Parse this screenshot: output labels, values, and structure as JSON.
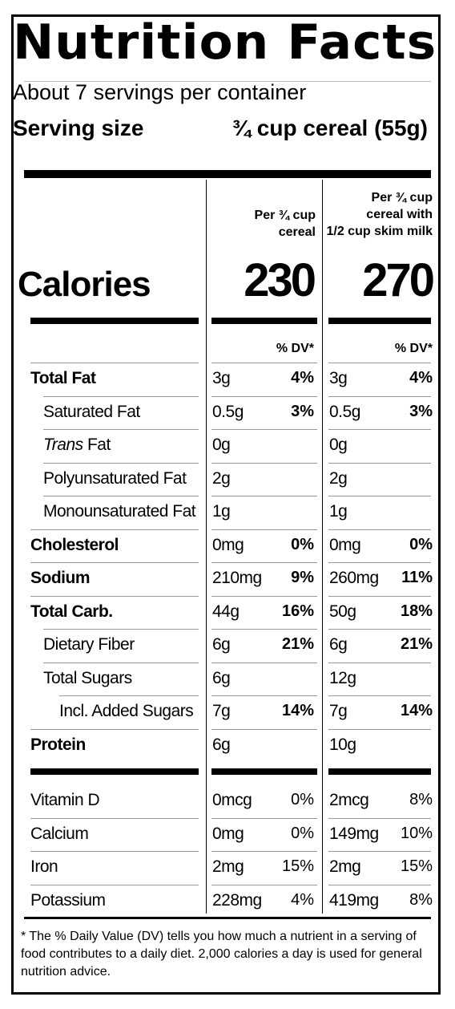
{
  "title": "Nutrition Facts",
  "servings_per_container": "About 7 servings per container",
  "serving_size_label": "Serving size",
  "serving_size_value": "¾ cup cereal (55g)",
  "columns": [
    {
      "heading_line1": "Per ¾ cup",
      "heading_line2": "cereal",
      "heading_line3": "",
      "calories": "230",
      "dv_header": "% DV*"
    },
    {
      "heading_line1": "Per ¾ cup",
      "heading_line2": "cereal with",
      "heading_line3": "1/2 cup skim milk",
      "calories": "270",
      "dv_header": "% DV*"
    }
  ],
  "calories_label": "Calories",
  "nutrients": [
    {
      "name": "Total Fat",
      "bold": true,
      "indent": 0,
      "c1_amount": "3g",
      "c1_dv": "4%",
      "c2_amount": "3g",
      "c2_dv": "4%"
    },
    {
      "name": "Saturated Fat",
      "bold": false,
      "indent": 1,
      "c1_amount": "0.5g",
      "c1_dv": "3%",
      "c2_amount": "0.5g",
      "c2_dv": "3%"
    },
    {
      "name": "Trans Fat",
      "bold": false,
      "indent": 1,
      "italic_prefix": "Trans",
      "name_suffix": " Fat",
      "c1_amount": "0g",
      "c1_dv": "",
      "c2_amount": "0g",
      "c2_dv": ""
    },
    {
      "name": "Polyunsaturated Fat",
      "bold": false,
      "indent": 1,
      "c1_amount": "2g",
      "c1_dv": "",
      "c2_amount": "2g",
      "c2_dv": ""
    },
    {
      "name": "Monounsaturated Fat",
      "bold": false,
      "indent": 1,
      "c1_amount": "1g",
      "c1_dv": "",
      "c2_amount": "1g",
      "c2_dv": ""
    },
    {
      "name": "Cholesterol",
      "bold": true,
      "indent": 0,
      "c1_amount": "0mg",
      "c1_dv": "0%",
      "c2_amount": "0mg",
      "c2_dv": "0%"
    },
    {
      "name": "Sodium",
      "bold": true,
      "indent": 0,
      "c1_amount": "210mg",
      "c1_dv": "9%",
      "c2_amount": "260mg",
      "c2_dv": "11%"
    },
    {
      "name": "Total Carb.",
      "bold": true,
      "indent": 0,
      "c1_amount": "44g",
      "c1_dv": "16%",
      "c2_amount": "50g",
      "c2_dv": "18%"
    },
    {
      "name": "Dietary Fiber",
      "bold": false,
      "indent": 1,
      "c1_amount": "6g",
      "c1_dv": "21%",
      "c2_amount": "6g",
      "c2_dv": "21%"
    },
    {
      "name": "Total Sugars",
      "bold": false,
      "indent": 1,
      "c1_amount": "6g",
      "c1_dv": "",
      "c2_amount": "12g",
      "c2_dv": ""
    },
    {
      "name": "Incl. Added Sugars",
      "bold": false,
      "indent": 2,
      "c1_amount": "7g",
      "c1_dv": "14%",
      "c2_amount": "7g",
      "c2_dv": "14%"
    },
    {
      "name": "Protein",
      "bold": true,
      "indent": 0,
      "c1_amount": "6g",
      "c1_dv": "",
      "c2_amount": "10g",
      "c2_dv": ""
    }
  ],
  "vitamins": [
    {
      "name": "Vitamin D",
      "c1_amount": "0mcg",
      "c1_dv": "0%",
      "c2_amount": "2mcg",
      "c2_dv": "8%"
    },
    {
      "name": "Calcium",
      "c1_amount": "0mg",
      "c1_dv": "0%",
      "c2_amount": "149mg",
      "c2_dv": "10%"
    },
    {
      "name": "Iron",
      "c1_amount": "2mg",
      "c1_dv": "15%",
      "c2_amount": "2mg",
      "c2_dv": "15%"
    },
    {
      "name": "Potassium",
      "c1_amount": "228mg",
      "c1_dv": "4%",
      "c2_amount": "419mg",
      "c2_dv": "8%"
    }
  ],
  "footnote": "* The % Daily Value (DV) tells you how much a nutrient in a serving of food contributes to a daily diet. 2,000 calories a day is used for general nutrition advice."
}
